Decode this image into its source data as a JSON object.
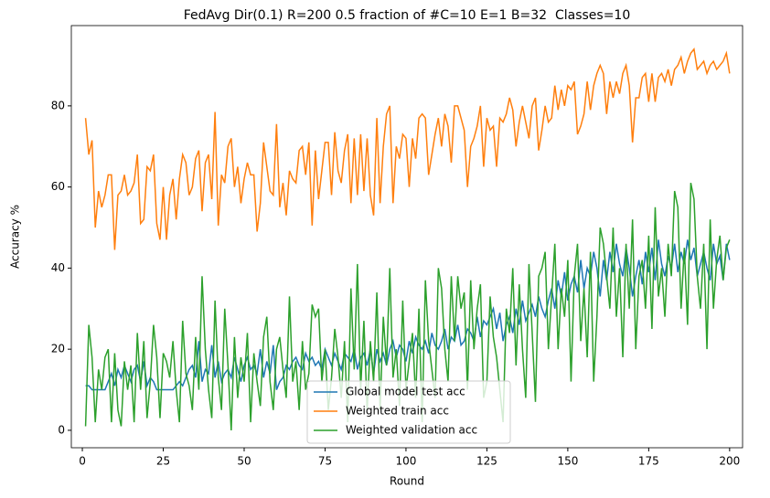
{
  "chart_data": {
    "type": "line",
    "title": "FedAvg Dir(0.1) R=200 0.5 fraction of #C=10 E=1 B=32  Classes=10",
    "xlabel": "Round",
    "ylabel": "Accuracy %",
    "x": [
      1,
      2,
      3,
      4,
      5,
      6,
      7,
      8,
      9,
      10,
      11,
      12,
      13,
      14,
      15,
      16,
      17,
      18,
      19,
      20,
      21,
      22,
      23,
      24,
      25,
      26,
      27,
      28,
      29,
      30,
      31,
      32,
      33,
      34,
      35,
      36,
      37,
      38,
      39,
      40,
      41,
      42,
      43,
      44,
      45,
      46,
      47,
      48,
      49,
      50,
      51,
      52,
      53,
      54,
      55,
      56,
      57,
      58,
      59,
      60,
      61,
      62,
      63,
      64,
      65,
      66,
      67,
      68,
      69,
      70,
      71,
      72,
      73,
      74,
      75,
      76,
      77,
      78,
      79,
      80,
      81,
      82,
      83,
      84,
      85,
      86,
      87,
      88,
      89,
      90,
      91,
      92,
      93,
      94,
      95,
      96,
      97,
      98,
      99,
      100,
      101,
      102,
      103,
      104,
      105,
      106,
      107,
      108,
      109,
      110,
      111,
      112,
      113,
      114,
      115,
      116,
      117,
      118,
      119,
      120,
      121,
      122,
      123,
      124,
      125,
      126,
      127,
      128,
      129,
      130,
      131,
      132,
      133,
      134,
      135,
      136,
      137,
      138,
      139,
      140,
      141,
      142,
      143,
      144,
      145,
      146,
      147,
      148,
      149,
      150,
      151,
      152,
      153,
      154,
      155,
      156,
      157,
      158,
      159,
      160,
      161,
      162,
      163,
      164,
      165,
      166,
      167,
      168,
      169,
      170,
      171,
      172,
      173,
      174,
      175,
      176,
      177,
      178,
      179,
      180,
      181,
      182,
      183,
      184,
      185,
      186,
      187,
      188,
      189,
      190,
      191,
      192,
      193,
      194,
      195,
      196,
      197,
      198,
      199,
      200
    ],
    "series": [
      {
        "name": "Global model test acc",
        "color": "#1f77b4",
        "values": [
          11,
          11,
          10,
          10,
          10,
          10,
          10,
          12,
          14,
          11,
          15,
          13,
          16,
          14,
          12,
          15,
          16,
          12,
          17,
          11,
          13,
          12,
          10,
          10,
          10,
          10,
          10,
          10,
          11,
          12,
          11,
          13,
          15,
          16,
          13,
          22,
          12,
          15,
          14,
          21,
          13,
          17,
          12,
          14,
          15,
          13,
          18,
          15,
          12,
          16,
          18,
          15,
          16,
          14,
          20,
          13,
          17,
          14,
          21,
          10,
          12,
          13,
          16,
          15,
          17,
          18,
          16,
          15,
          19,
          17,
          18,
          16,
          17,
          15,
          20,
          18,
          16,
          19,
          17,
          15,
          19,
          18,
          17,
          20,
          15,
          18,
          19,
          16,
          20,
          14,
          20,
          17,
          19,
          16,
          20,
          22,
          18,
          21,
          20,
          17,
          22,
          19,
          23,
          21,
          20,
          22,
          19,
          24,
          21,
          20,
          22,
          25,
          20,
          23,
          22,
          26,
          21,
          22,
          25,
          24,
          22,
          28,
          23,
          27,
          26,
          28,
          30,
          25,
          29,
          22,
          26,
          28,
          24,
          30,
          26,
          32,
          27,
          29,
          31,
          28,
          33,
          30,
          28,
          32,
          35,
          30,
          37,
          33,
          39,
          32,
          36,
          38,
          34,
          42,
          35,
          40,
          38,
          44,
          40,
          33,
          42,
          37,
          44,
          39,
          46,
          41,
          38,
          45,
          40,
          33,
          38,
          42,
          36,
          44,
          39,
          45,
          37,
          47,
          41,
          38,
          43,
          40,
          46,
          39,
          44,
          41,
          47,
          42,
          45,
          38,
          41,
          44,
          40,
          37,
          46,
          41,
          43,
          37,
          46,
          42
        ]
      },
      {
        "name": "Weighted train acc",
        "color": "#ff7f0e",
        "values": [
          77,
          68,
          71.5,
          50,
          59,
          55,
          58,
          63,
          63,
          44.5,
          58,
          59,
          63,
          58,
          59,
          61,
          68,
          51,
          52,
          65,
          64,
          68,
          51,
          47,
          60,
          47,
          58,
          62,
          52,
          62,
          68,
          66,
          58,
          60,
          67,
          69,
          54,
          66,
          68,
          57,
          78.5,
          50.5,
          63,
          61,
          70,
          72,
          60,
          65,
          56,
          62,
          66,
          63,
          63,
          49,
          56,
          71,
          65,
          59,
          58,
          75.5,
          55,
          61,
          53,
          64,
          62,
          61,
          69,
          70,
          63,
          71,
          50.5,
          69,
          57,
          64,
          71,
          71,
          58,
          73.5,
          64,
          61,
          69,
          73,
          56,
          72,
          58,
          73,
          59,
          72,
          58,
          53,
          77,
          56,
          70,
          78,
          80,
          56,
          70,
          67,
          73,
          72,
          60,
          72,
          67,
          77,
          78,
          77,
          63,
          68,
          73,
          77,
          70,
          78,
          75,
          66,
          80,
          80,
          77,
          74,
          60,
          70,
          72,
          75,
          80,
          65,
          77,
          74,
          75,
          65,
          77,
          76,
          78,
          82,
          79,
          70,
          76,
          80,
          76,
          72,
          80,
          82,
          69,
          74,
          80,
          76,
          77,
          85,
          79,
          84,
          80,
          85,
          84,
          86,
          73,
          75,
          78,
          86,
          79,
          85,
          88,
          90,
          88,
          78,
          86,
          82,
          86,
          83,
          88,
          90,
          85,
          71,
          82,
          82,
          87,
          88,
          81,
          88,
          81,
          87,
          88,
          86,
          89,
          85,
          89,
          90,
          92,
          88,
          91,
          93,
          94,
          89,
          90,
          91,
          88,
          90,
          91,
          89,
          90,
          91,
          93,
          88
        ]
      },
      {
        "name": "Weighted validation acc",
        "color": "#2ca02c",
        "values": [
          1,
          26,
          18,
          2,
          15,
          10,
          18,
          20,
          2,
          19,
          5,
          1,
          17,
          10,
          16,
          2,
          24,
          10,
          22,
          3,
          12,
          26,
          18,
          3,
          19,
          17,
          13,
          22,
          10,
          2,
          27,
          14,
          11,
          5,
          23,
          10,
          38,
          20,
          10,
          3,
          32,
          13,
          5,
          30,
          16,
          0,
          23,
          8,
          18,
          12,
          24,
          2,
          19,
          12,
          6,
          23,
          28,
          12,
          5,
          20,
          23,
          15,
          8,
          33,
          12,
          17,
          5,
          22,
          10,
          14,
          31,
          28,
          30,
          12,
          20,
          5,
          13,
          25,
          18,
          8,
          22,
          2,
          35,
          15,
          41,
          10,
          27,
          5,
          22,
          12,
          34,
          5,
          28,
          16,
          40,
          13,
          20,
          6,
          32,
          10,
          17,
          24,
          8,
          30,
          2,
          37,
          22,
          15,
          8,
          40,
          35,
          20,
          12,
          38,
          22,
          38,
          30,
          34,
          10,
          37,
          20,
          30,
          36,
          8,
          12,
          33,
          23,
          18,
          10,
          2,
          30,
          24,
          40,
          16,
          36,
          20,
          8,
          41,
          24,
          7,
          38,
          40,
          44,
          20,
          33,
          46,
          20,
          35,
          28,
          42,
          12,
          38,
          46,
          22,
          35,
          18,
          44,
          12,
          28,
          50,
          46,
          38,
          30,
          50,
          28,
          40,
          18,
          46,
          30,
          52,
          20,
          38,
          42,
          30,
          48,
          25,
          55,
          33,
          40,
          28,
          46,
          38,
          59,
          55,
          30,
          45,
          26,
          61,
          57,
          38,
          30,
          46,
          20,
          52,
          30,
          42,
          48,
          37,
          45,
          47
        ]
      }
    ],
    "xlim": [
      -3.4,
      204
    ],
    "ylim": [
      -4.3,
      99.8
    ],
    "xticks": [
      0,
      25,
      50,
      75,
      100,
      125,
      150,
      175,
      200
    ],
    "yticks": [
      0,
      20,
      40,
      60,
      80
    ],
    "legend": "lower center"
  }
}
